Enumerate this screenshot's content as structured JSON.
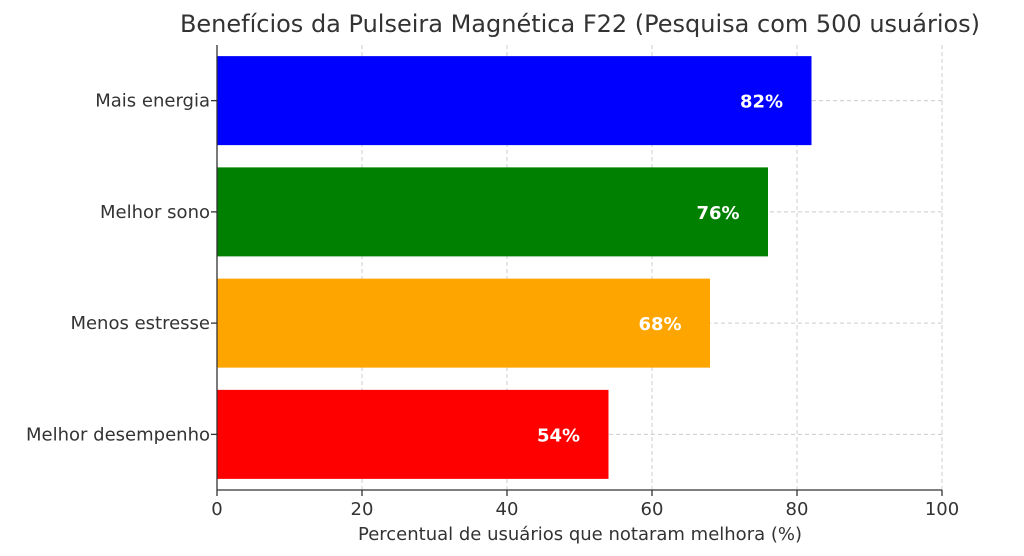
{
  "chart_data": {
    "type": "bar",
    "orientation": "horizontal",
    "title": "Benefícios da Pulseira Magnética F22 (Pesquisa com 500 usuários)",
    "xlabel": "Percentual de usuários que notaram melhora (%)",
    "ylabel": "",
    "categories": [
      "Mais energia",
      "Melhor sono",
      "Menos estresse",
      "Melhor desempenho"
    ],
    "values": [
      82,
      76,
      68,
      54
    ],
    "value_labels": [
      "82%",
      "76%",
      "68%",
      "54%"
    ],
    "colors": [
      "#0000ff",
      "#008000",
      "#ffa500",
      "#ff0000"
    ],
    "xlim": [
      0,
      100
    ],
    "xticks": [
      0,
      20,
      40,
      60,
      80,
      100
    ],
    "xtick_labels": [
      "0",
      "20",
      "40",
      "60",
      "80",
      "100"
    ],
    "grid": true
  }
}
